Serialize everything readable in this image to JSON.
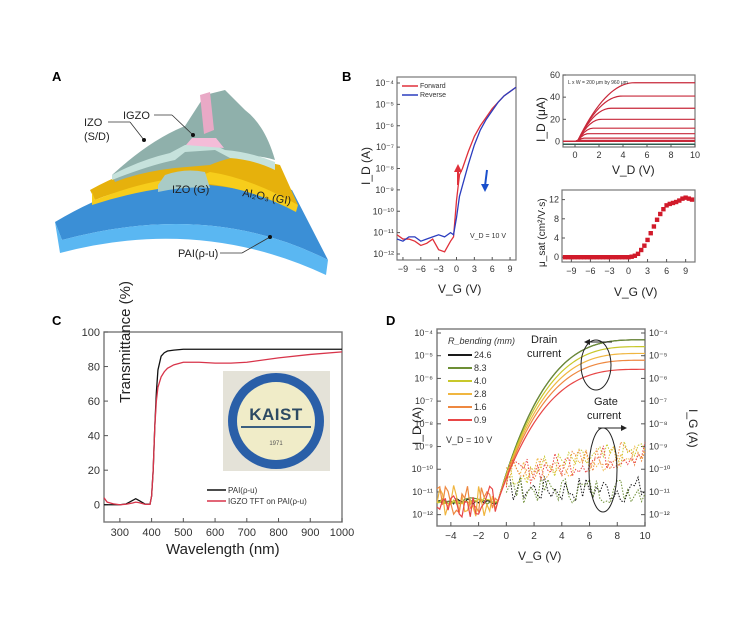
{
  "figure": {
    "panel_labels": [
      "A",
      "B",
      "C",
      "D"
    ]
  },
  "panel_a": {
    "labels": {
      "igzo": "IGZO",
      "izo_sd_1": "IZO",
      "izo_sd_2": "(S/D)",
      "izo_g": "IZO (G)",
      "al2o3_gi": "Al₂O₃ (GI)",
      "substrate": "PAI(ρ-u)"
    },
    "colors": {
      "substrate": "#4da6e8",
      "dielectric": "#f3c21a",
      "izo": "#9fbfb9",
      "igzo": "#e9a9c6"
    }
  },
  "chart_data": [
    {
      "id": "B-transfer",
      "type": "line",
      "title": "",
      "xlabel": "V_G (V)",
      "ylabel": "I_D (A)",
      "yscale": "log",
      "xlim": [
        -10,
        10
      ],
      "ylim_exp": [
        -12,
        -4
      ],
      "xticks": [
        -9,
        -6,
        -3,
        0,
        3,
        6,
        9
      ],
      "yticks": [
        "10⁻⁴",
        "10⁻⁵",
        "10⁻⁶",
        "10⁻⁷",
        "10⁻⁸",
        "10⁻⁹",
        "10⁻¹⁰",
        "10⁻¹¹",
        "10⁻¹²"
      ],
      "annotation": "V_D = 10 V",
      "legend": "top-left",
      "series": [
        {
          "name": "Forward",
          "color": "#e0303a",
          "x": [
            -10,
            -9,
            -8,
            -7,
            -6,
            -5,
            -4,
            -3,
            -2,
            -1,
            -0.5,
            0,
            0.5,
            1,
            2,
            3,
            4,
            5,
            6,
            7,
            8,
            9,
            10
          ],
          "logy": [
            -11.1,
            -11.3,
            -11.3,
            -11.4,
            -11.6,
            -11.5,
            -11.3,
            -11.8,
            -11.9,
            -11.4,
            -11.2,
            -9.5,
            -8.3,
            -8.0,
            -7.2,
            -6.5,
            -6.0,
            -5.6,
            -5.2,
            -4.9,
            -4.6,
            -4.4,
            -4.2
          ]
        },
        {
          "name": "Reverse",
          "color": "#2b3dbf",
          "x": [
            -10,
            -9,
            -8,
            -7,
            -6,
            -5,
            -4,
            -3,
            -2,
            -1,
            -0.5,
            0,
            0.5,
            1,
            2,
            3,
            4,
            5,
            6,
            7,
            8,
            9,
            10
          ],
          "logy": [
            -11.3,
            -11.4,
            -11.2,
            -11.2,
            -11.4,
            -11.3,
            -11.2,
            -11.1,
            -11.2,
            -11.0,
            -11.1,
            -10.3,
            -9.3,
            -8.8,
            -7.8,
            -6.9,
            -6.2,
            -5.7,
            -5.3,
            -4.9,
            -4.6,
            -4.4,
            -4.2
          ]
        }
      ]
    },
    {
      "id": "B-output",
      "type": "line",
      "xlabel": "V_D (V)",
      "ylabel": "I_D (μA)",
      "xlim": [
        -1,
        10
      ],
      "ylim": [
        -5,
        60
      ],
      "xticks": [
        0,
        2,
        4,
        6,
        8,
        10
      ],
      "yticks": [
        0,
        20,
        40,
        60
      ],
      "annotation": "L x W = 200 μm by 960 μm",
      "saturation_currents_uA": [
        53,
        41,
        30,
        20,
        12,
        7,
        3,
        1,
        0
      ],
      "color": "#c8283a"
    },
    {
      "id": "B-mobility",
      "type": "scatter",
      "xlabel": "V_G (V)",
      "ylabel": "μ_sat (cm²/V·s)",
      "xlim": [
        -10,
        10
      ],
      "ylim": [
        -1,
        14
      ],
      "xticks": [
        -9,
        -6,
        -3,
        0,
        3,
        6,
        9
      ],
      "yticks": [
        0,
        4,
        8,
        12
      ],
      "color": "#d11a2a",
      "x": [
        -10,
        -9.5,
        -9,
        -8.5,
        -8,
        -7.5,
        -7,
        -6.5,
        -6,
        -5.5,
        -5,
        -4.5,
        -4,
        -3.5,
        -3,
        -2.5,
        -2,
        -1.5,
        -1,
        -0.5,
        0,
        0.5,
        1,
        1.5,
        2,
        2.5,
        3,
        3.5,
        4,
        4.5,
        5,
        5.5,
        6,
        6.5,
        7,
        7.5,
        8,
        8.5,
        9,
        9.5,
        10
      ],
      "y": [
        0,
        0,
        0,
        0,
        0,
        0,
        0,
        0,
        0,
        0,
        0,
        0,
        0,
        0,
        0,
        0,
        0,
        0,
        0,
        0,
        0,
        0.1,
        0.3,
        0.7,
        1.5,
        2.4,
        3.6,
        5.0,
        6.4,
        7.8,
        9.0,
        10.0,
        10.8,
        11.1,
        11.3,
        11.5,
        11.8,
        12.2,
        12.4,
        12.2,
        12.0
      ]
    },
    {
      "id": "C-transmittance",
      "type": "line",
      "xlabel": "Wavelength (nm)",
      "ylabel": "Transmittance (%)",
      "xlim": [
        250,
        1000
      ],
      "ylim": [
        -10,
        100
      ],
      "xticks": [
        300,
        400,
        500,
        600,
        700,
        800,
        900,
        1000
      ],
      "yticks": [
        0,
        20,
        40,
        60,
        80,
        100
      ],
      "legend": "bottom-right",
      "inset_logo": {
        "text": "KAIST",
        "year": "1971"
      },
      "series": [
        {
          "name": "PAI(ρ-u)",
          "color": "#111111",
          "x": [
            250,
            280,
            300,
            320,
            340,
            350,
            360,
            380,
            395,
            400,
            405,
            410,
            415,
            420,
            430,
            440,
            450,
            470,
            500,
            550,
            600,
            700,
            800,
            900,
            1000
          ],
          "y": [
            0,
            0,
            0,
            0.5,
            2.5,
            3.5,
            2.5,
            0.3,
            0.3,
            5,
            20,
            45,
            65,
            78,
            86,
            88,
            89,
            89.5,
            90,
            90,
            90,
            90,
            90,
            90,
            90
          ]
        },
        {
          "name": "IGZO TFT on PAI(ρ-u)",
          "color": "#d8344a",
          "x": [
            250,
            260,
            280,
            300,
            320,
            340,
            350,
            360,
            380,
            395,
            400,
            405,
            410,
            415,
            420,
            430,
            440,
            450,
            470,
            500,
            550,
            600,
            650,
            700,
            800,
            900,
            1000
          ],
          "y": [
            4,
            1.5,
            0.5,
            0,
            0.3,
            1,
            1.5,
            1.2,
            0.2,
            0.2,
            5,
            20,
            45,
            60,
            68,
            74,
            77,
            79,
            81,
            82.5,
            82.5,
            82,
            82,
            82.5,
            85,
            87,
            88.5
          ]
        }
      ]
    },
    {
      "id": "D-bending",
      "type": "line",
      "xlabel": "V_G (V)",
      "ylabel": "I_D (A)",
      "ylabel_right": "I_G (A)",
      "yscale": "log",
      "xlim": [
        -5,
        10
      ],
      "ylim_exp": [
        -12.5,
        -4
      ],
      "xticks": [
        -4,
        -2,
        0,
        2,
        4,
        6,
        8,
        10
      ],
      "yticks": [
        "10⁻⁴",
        "10⁻⁵",
        "10⁻⁶",
        "10⁻⁷",
        "10⁻⁸",
        "10⁻⁹",
        "10⁻¹⁰",
        "10⁻¹¹",
        "10⁻¹²"
      ],
      "legend_title": "R_bending (mm)",
      "annotation": "V_D = 10 V",
      "annotations": {
        "drain": [
          "Drain",
          "current"
        ],
        "gate": [
          "Gate",
          "current"
        ]
      },
      "series": [
        {
          "name": "24.6",
          "color": "#1a1a1a",
          "drain_on_log": -4.3
        },
        {
          "name": "8.3",
          "color": "#6d8f35",
          "drain_on_log": -4.3
        },
        {
          "name": "4.0",
          "color": "#c8c82a",
          "drain_on_log": -4.6
        },
        {
          "name": "2.8",
          "color": "#f0b640",
          "drain_on_log": -4.9
        },
        {
          "name": "1.6",
          "color": "#ee8840",
          "drain_on_log": -5.2
        },
        {
          "name": "0.9",
          "color": "#e84646",
          "drain_on_log": -5.6
        }
      ]
    }
  ]
}
